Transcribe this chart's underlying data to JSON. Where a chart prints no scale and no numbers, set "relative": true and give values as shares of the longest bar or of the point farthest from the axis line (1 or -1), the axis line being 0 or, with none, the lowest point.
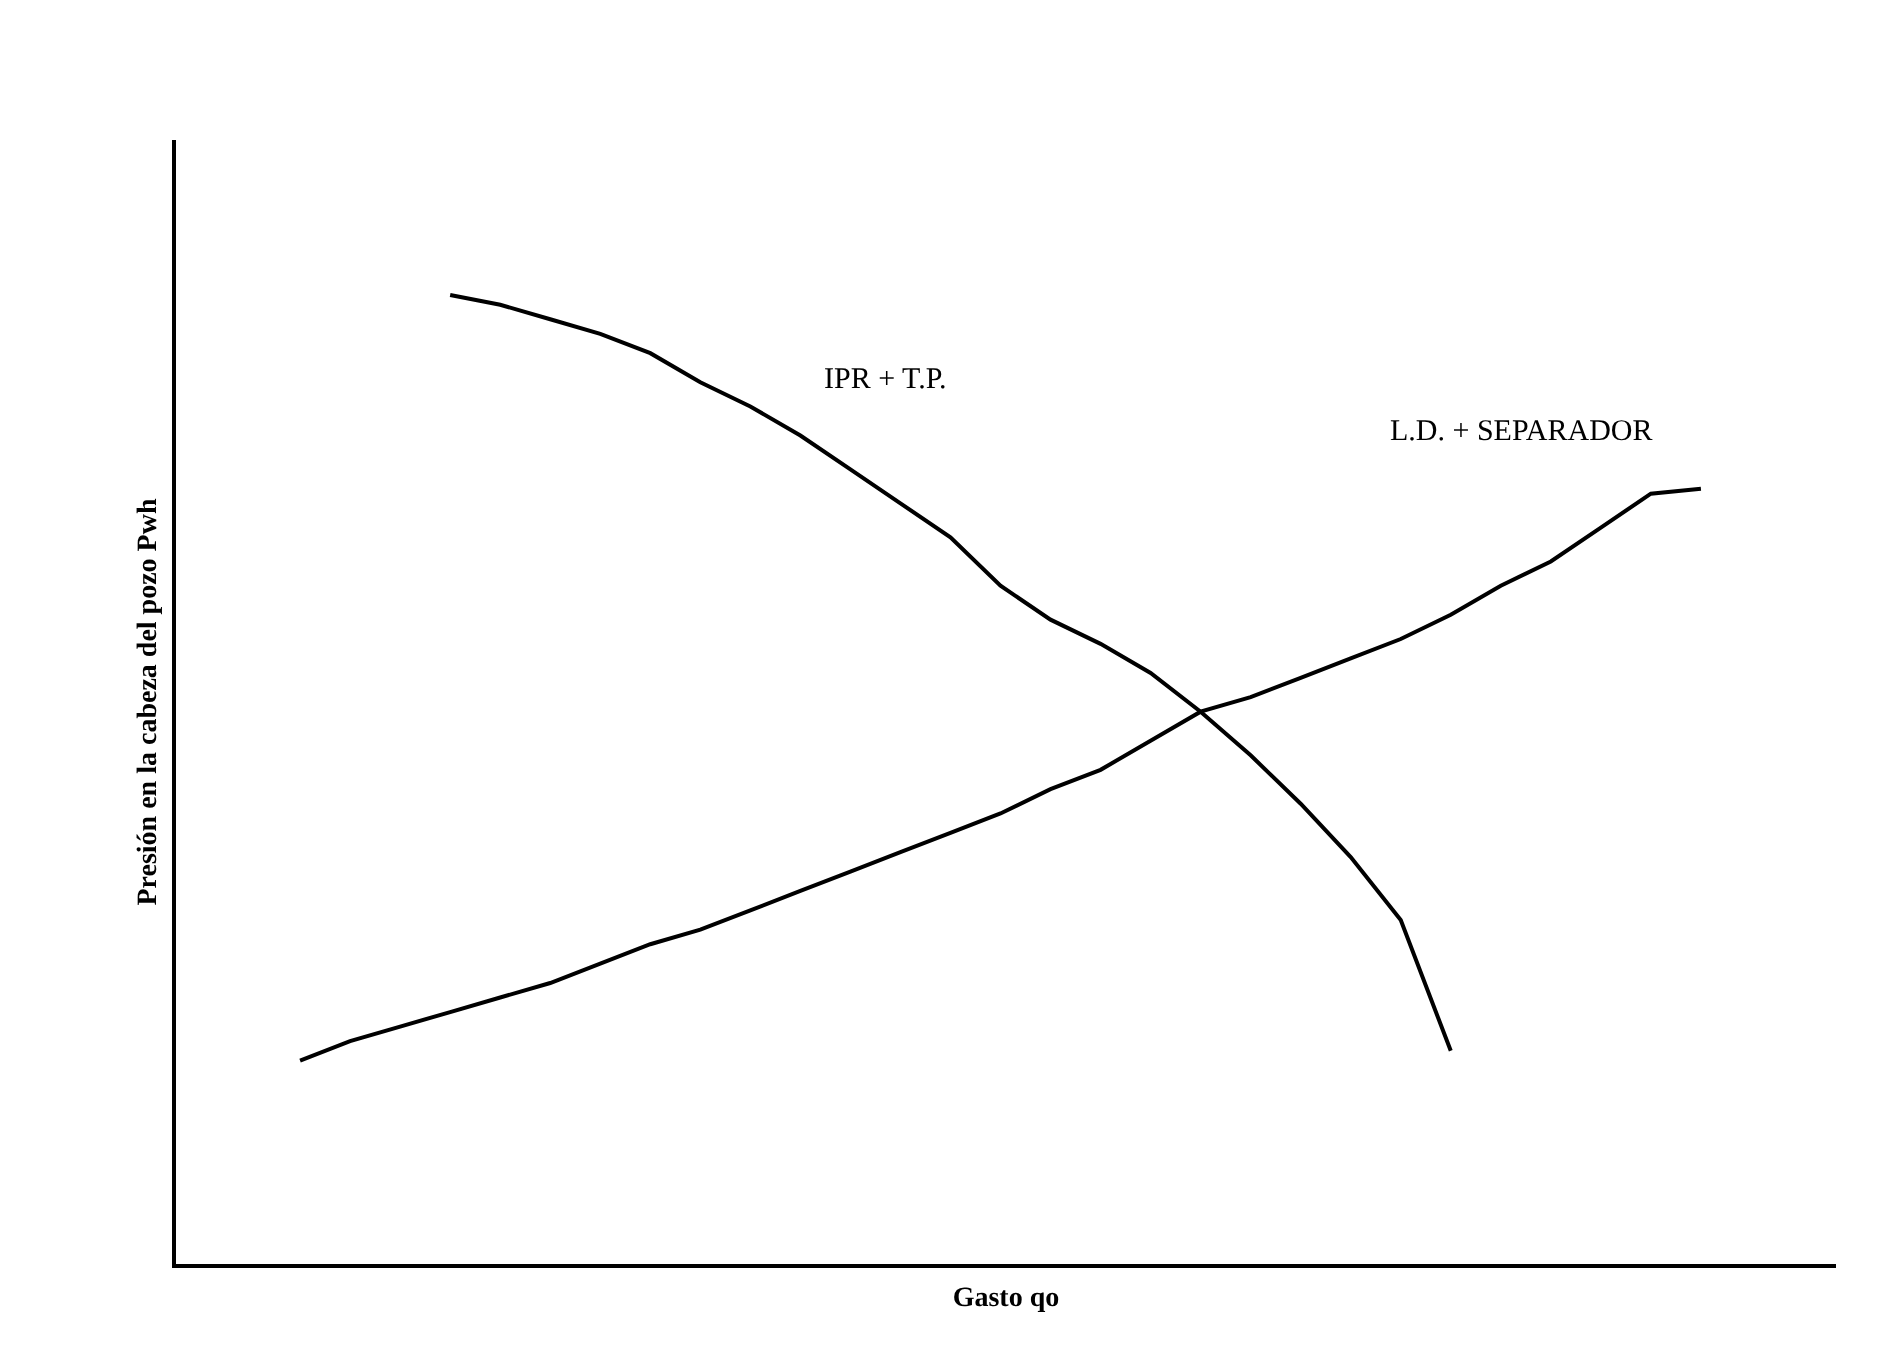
{
  "chart_data": {
    "type": "line",
    "relative": true,
    "xlabel": "Gasto qo",
    "ylabel": "Presión en la cabeza del pozo Pwh",
    "categories": [
      null,
      null,
      null,
      null,
      null,
      null,
      null,
      null,
      null,
      null,
      null,
      null,
      null,
      null,
      null,
      null,
      null,
      null,
      null,
      null,
      null,
      null,
      null,
      null,
      null,
      null,
      null,
      null,
      null
    ],
    "series": [
      {
        "name": "IPR + T.P.",
        "color": "#000000",
        "values": [
          null,
          null,
          null,
          1.0,
          0.99,
          0.975,
          0.96,
          0.94,
          0.91,
          0.885,
          0.855,
          0.82,
          0.785,
          0.75,
          0.7,
          0.665,
          0.64,
          0.61,
          0.57,
          0.525,
          0.475,
          0.42,
          0.355,
          0.22,
          null,
          null,
          null,
          null,
          null
        ]
      },
      {
        "name": "L.D. + SEPARADOR",
        "color": "#000000",
        "values": [
          0.21,
          0.23,
          0.245,
          0.26,
          0.275,
          0.29,
          0.31,
          0.33,
          0.345,
          0.365,
          0.385,
          0.405,
          0.425,
          0.445,
          0.465,
          0.49,
          0.51,
          0.54,
          0.57,
          0.585,
          0.605,
          0.625,
          0.645,
          0.67,
          0.7,
          0.725,
          0.76,
          0.795,
          0.8
        ]
      }
    ]
  }
}
